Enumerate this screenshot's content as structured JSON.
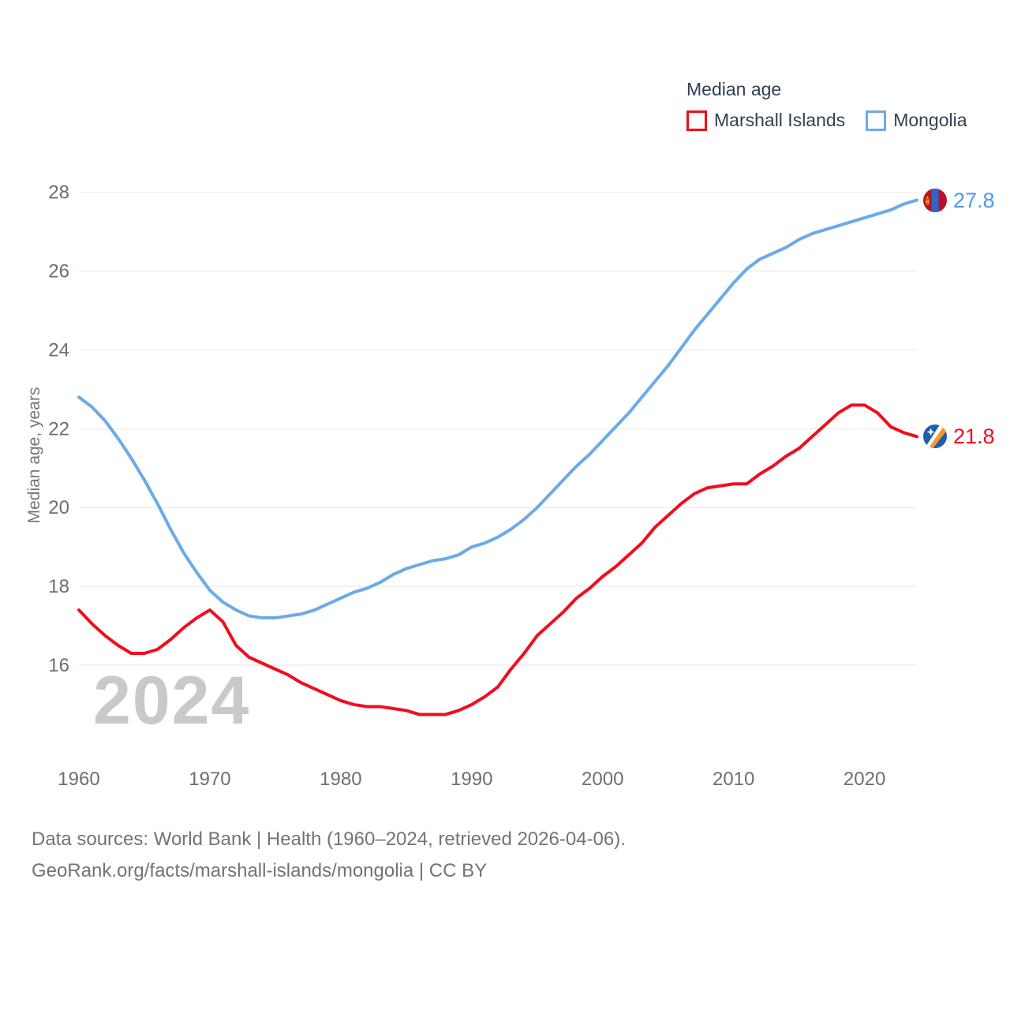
{
  "legend": {
    "title": "Median age",
    "items": [
      {
        "label": "Marshall Islands",
        "color": "#f00d1e"
      },
      {
        "label": "Mongolia",
        "color": "#6aabe8"
      }
    ]
  },
  "watermark": "2024",
  "footer": {
    "line1": "Data sources: World Bank | Health (1960–2024, retrieved 2026-04-06).",
    "line2": "GeoRank.org/facts/marshall-islands/mongolia | CC BY"
  },
  "end_labels": [
    {
      "country": "Mongolia",
      "value": "27.8"
    },
    {
      "country": "Marshall Islands",
      "value": "21.8"
    }
  ],
  "chart_data": {
    "type": "line",
    "title": "Median age",
    "ylabel": "Median age, years",
    "xlabel": "",
    "ylim": [
      16,
      28
    ],
    "xlim": [
      1960,
      2024
    ],
    "y_ticks": [
      16,
      18,
      20,
      22,
      24,
      26,
      28
    ],
    "x_ticks": [
      1960,
      1970,
      1980,
      1990,
      2000,
      2010,
      2020
    ],
    "grid": "horizontal",
    "legend_position": "top-right",
    "x": [
      1960,
      1961,
      1962,
      1963,
      1964,
      1965,
      1966,
      1967,
      1968,
      1969,
      1970,
      1971,
      1972,
      1973,
      1974,
      1975,
      1976,
      1977,
      1978,
      1979,
      1980,
      1981,
      1982,
      1983,
      1984,
      1985,
      1986,
      1987,
      1988,
      1989,
      1990,
      1991,
      1992,
      1993,
      1994,
      1995,
      1996,
      1997,
      1998,
      1999,
      2000,
      2001,
      2002,
      2003,
      2004,
      2005,
      2006,
      2007,
      2008,
      2009,
      2010,
      2011,
      2012,
      2013,
      2014,
      2015,
      2016,
      2017,
      2018,
      2019,
      2020,
      2021,
      2022,
      2023,
      2024
    ],
    "series": [
      {
        "name": "Mongolia",
        "color": "#6aabe8",
        "end_label": "27.8",
        "values": [
          22.8,
          22.55,
          22.2,
          21.75,
          21.25,
          20.7,
          20.1,
          19.45,
          18.85,
          18.35,
          17.9,
          17.6,
          17.4,
          17.25,
          17.2,
          17.2,
          17.25,
          17.3,
          17.4,
          17.55,
          17.7,
          17.85,
          17.95,
          18.1,
          18.3,
          18.45,
          18.55,
          18.65,
          18.7,
          18.8,
          19.0,
          19.1,
          19.25,
          19.45,
          19.7,
          20.0,
          20.35,
          20.7,
          21.05,
          21.35,
          21.7,
          22.05,
          22.4,
          22.8,
          23.2,
          23.6,
          24.05,
          24.5,
          24.9,
          25.3,
          25.7,
          26.05,
          26.3,
          26.45,
          26.6,
          26.8,
          26.95,
          27.05,
          27.15,
          27.25,
          27.35,
          27.45,
          27.55,
          27.7,
          27.8
        ]
      },
      {
        "name": "Marshall Islands",
        "color": "#f00d1e",
        "end_label": "21.8",
        "values": [
          17.4,
          17.05,
          16.75,
          16.5,
          16.3,
          16.3,
          16.4,
          16.65,
          16.95,
          17.2,
          17.4,
          17.1,
          16.5,
          16.2,
          16.05,
          15.9,
          15.75,
          15.55,
          15.4,
          15.25,
          15.1,
          15.0,
          14.95,
          14.95,
          14.9,
          14.85,
          14.75,
          14.75,
          14.75,
          14.85,
          15.0,
          15.2,
          15.45,
          15.9,
          16.3,
          16.75,
          17.05,
          17.35,
          17.7,
          17.95,
          18.25,
          18.5,
          18.8,
          19.1,
          19.5,
          19.8,
          20.1,
          20.35,
          20.5,
          20.55,
          20.6,
          20.6,
          20.85,
          21.05,
          21.3,
          21.5,
          21.8,
          22.1,
          22.4,
          22.6,
          22.6,
          22.4,
          22.05,
          21.9,
          21.8
        ]
      }
    ]
  }
}
